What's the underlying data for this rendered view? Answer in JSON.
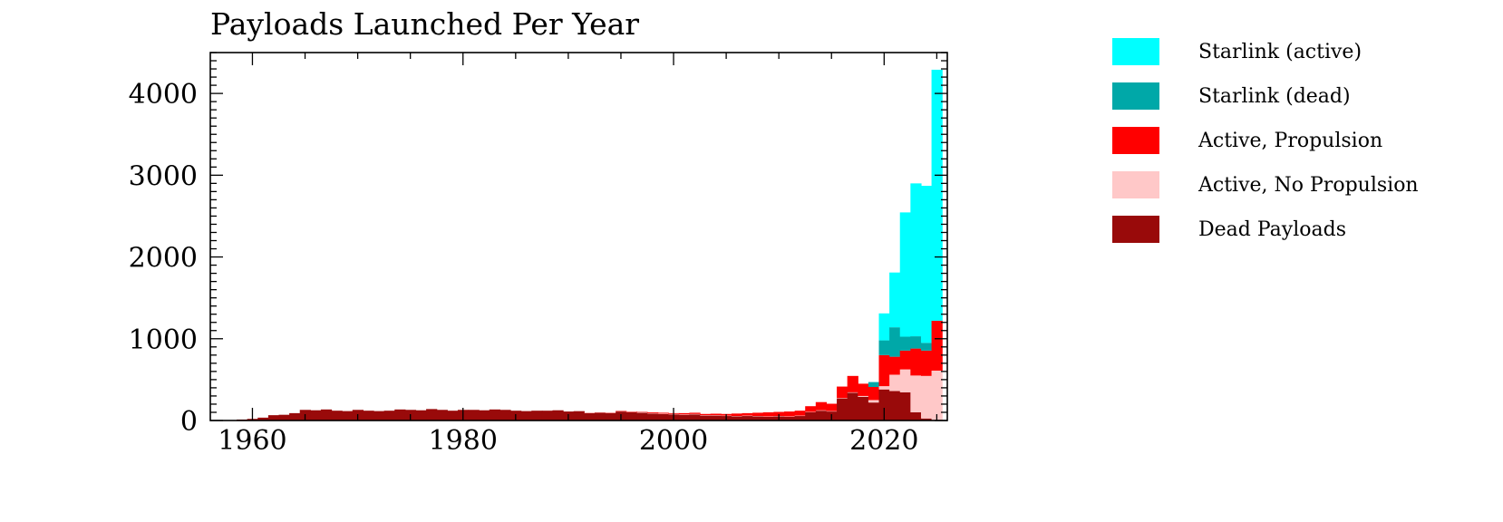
{
  "chart_data": {
    "type": "bar",
    "stacked": true,
    "title": "Payloads Launched Per Year",
    "xlabel": "",
    "ylabel": "",
    "xlim": [
      1956,
      2026
    ],
    "ylim": [
      0,
      4500
    ],
    "x_ticks": [
      1960,
      1980,
      2000,
      2020
    ],
    "y_ticks": [
      0,
      1000,
      2000,
      3000,
      4000
    ],
    "grid": false,
    "legend_position": "right",
    "years": [
      1957,
      1958,
      1959,
      1960,
      1961,
      1962,
      1963,
      1964,
      1965,
      1966,
      1967,
      1968,
      1969,
      1970,
      1971,
      1972,
      1973,
      1974,
      1975,
      1976,
      1977,
      1978,
      1979,
      1980,
      1981,
      1982,
      1983,
      1984,
      1985,
      1986,
      1987,
      1988,
      1989,
      1990,
      1991,
      1992,
      1993,
      1994,
      1995,
      1996,
      1997,
      1998,
      1999,
      2000,
      2001,
      2002,
      2003,
      2004,
      2005,
      2006,
      2007,
      2008,
      2009,
      2010,
      2011,
      2012,
      2013,
      2014,
      2015,
      2016,
      2017,
      2018,
      2019,
      2020,
      2021,
      2022,
      2023,
      2024,
      2025
    ],
    "series": [
      {
        "name": "Dead Payloads",
        "color": "#990a0a",
        "values": [
          2,
          5,
          12,
          20,
          35,
          65,
          70,
          90,
          130,
          125,
          135,
          120,
          115,
          130,
          120,
          115,
          120,
          135,
          130,
          125,
          140,
          130,
          120,
          130,
          130,
          125,
          135,
          130,
          120,
          115,
          120,
          120,
          125,
          110,
          115,
          90,
          95,
          90,
          110,
          100,
          95,
          85,
          80,
          75,
          70,
          75,
          60,
          60,
          55,
          50,
          55,
          50,
          45,
          50,
          45,
          55,
          100,
          120,
          110,
          270,
          340,
          290,
          220,
          380,
          360,
          345,
          100,
          25,
          0
        ]
      },
      {
        "name": "Active, No Propulsion",
        "color": "#ffc8c8",
        "values": [
          0,
          0,
          0,
          0,
          0,
          0,
          0,
          0,
          0,
          0,
          0,
          0,
          0,
          0,
          0,
          0,
          0,
          0,
          0,
          0,
          0,
          0,
          0,
          0,
          0,
          0,
          0,
          0,
          0,
          0,
          0,
          0,
          0,
          0,
          2,
          3,
          3,
          4,
          5,
          5,
          5,
          5,
          5,
          5,
          5,
          5,
          5,
          5,
          5,
          5,
          5,
          5,
          5,
          5,
          5,
          5,
          5,
          5,
          5,
          5,
          5,
          10,
          30,
          40,
          200,
          280,
          450,
          520,
          610
        ]
      },
      {
        "name": "Active, Propulsion",
        "color": "#ff0000",
        "values": [
          0,
          0,
          0,
          0,
          0,
          0,
          0,
          0,
          0,
          0,
          0,
          0,
          0,
          0,
          0,
          0,
          0,
          0,
          0,
          0,
          0,
          0,
          0,
          0,
          0,
          0,
          0,
          0,
          0,
          0,
          0,
          0,
          0,
          0,
          0,
          2,
          2,
          3,
          5,
          5,
          5,
          10,
          10,
          10,
          15,
          15,
          15,
          18,
          20,
          30,
          30,
          40,
          50,
          50,
          60,
          60,
          70,
          100,
          90,
          140,
          200,
          150,
          160,
          380,
          220,
          230,
          330,
          310,
          610
        ]
      },
      {
        "name": "Starlink (dead)",
        "color": "#00a8a8",
        "values": [
          0,
          0,
          0,
          0,
          0,
          0,
          0,
          0,
          0,
          0,
          0,
          0,
          0,
          0,
          0,
          0,
          0,
          0,
          0,
          0,
          0,
          0,
          0,
          0,
          0,
          0,
          0,
          0,
          0,
          0,
          0,
          0,
          0,
          0,
          0,
          0,
          0,
          0,
          0,
          0,
          0,
          0,
          0,
          0,
          0,
          0,
          0,
          0,
          0,
          0,
          0,
          0,
          0,
          0,
          0,
          0,
          0,
          0,
          0,
          0,
          0,
          0,
          60,
          180,
          360,
          170,
          150,
          95,
          0
        ]
      },
      {
        "name": "Starlink (active)",
        "color": "#00ffff",
        "values": [
          0,
          0,
          0,
          0,
          0,
          0,
          0,
          0,
          0,
          0,
          0,
          0,
          0,
          0,
          0,
          0,
          0,
          0,
          0,
          0,
          0,
          0,
          0,
          0,
          0,
          0,
          0,
          0,
          0,
          0,
          0,
          0,
          0,
          0,
          0,
          0,
          0,
          0,
          0,
          0,
          0,
          0,
          0,
          0,
          0,
          0,
          0,
          0,
          0,
          0,
          0,
          0,
          0,
          0,
          0,
          0,
          0,
          0,
          0,
          0,
          0,
          0,
          0,
          330,
          670,
          1520,
          1870,
          1920,
          3070
        ]
      }
    ],
    "legend": [
      {
        "label": "Starlink (active)",
        "color": "#00ffff"
      },
      {
        "label": "Starlink (dead)",
        "color": "#00a8a8"
      },
      {
        "label": "Active, Propulsion",
        "color": "#ff0000"
      },
      {
        "label": "Active, No Propulsion",
        "color": "#ffc8c8"
      },
      {
        "label": "Dead Payloads",
        "color": "#990a0a"
      }
    ]
  }
}
